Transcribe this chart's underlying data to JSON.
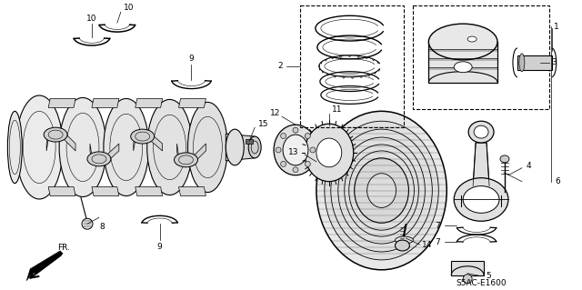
{
  "bg_color": "#ffffff",
  "fig_width": 6.4,
  "fig_height": 3.19,
  "dpi": 100,
  "code_label": "S5AC-E1600",
  "label_fontsize": 6.5
}
